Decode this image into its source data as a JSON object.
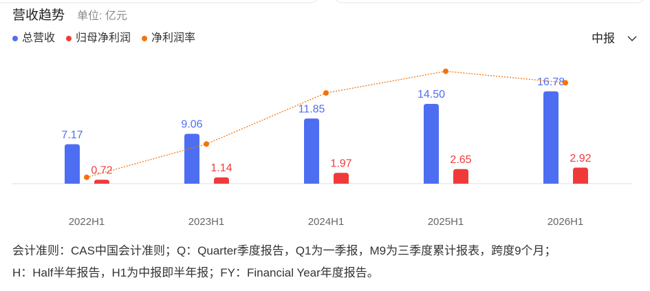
{
  "header": {
    "title": "营收趋势",
    "unit": "单位: 亿元",
    "period_selector": "中报"
  },
  "chart_data": {
    "type": "bar-line",
    "categories": [
      "2022H1",
      "2023H1",
      "2024H1",
      "2025H1",
      "2026H1"
    ],
    "series": [
      {
        "name": "总营收",
        "color": "#4e6ef2",
        "values": [
          7.17,
          9.06,
          11.85,
          14.5,
          16.78
        ],
        "value_labels": [
          "7.17",
          "9.06",
          "11.85",
          "14.50",
          "16.78"
        ]
      },
      {
        "name": "归母净利润",
        "color": "#f03a3a",
        "values": [
          0.72,
          1.14,
          1.97,
          2.65,
          2.92
        ]
      },
      {
        "name": "净利润率",
        "color": "#f5720a",
        "axis": "y2",
        "values": [
          10.0,
          12.6,
          16.6,
          18.3,
          17.4
        ]
      }
    ],
    "ylim": [
      0,
      20
    ],
    "y2lim": [
      9.5,
      20
    ]
  },
  "notes": [
    "会计准则：CAS中国会计准则；Q：Quarter季度报告，Q1为一季报，M9为三季度累计报表，跨度9个月；",
    "H：Half半年报告，H1为中报即半年报；FY：Financial Year年度报告。"
  ]
}
